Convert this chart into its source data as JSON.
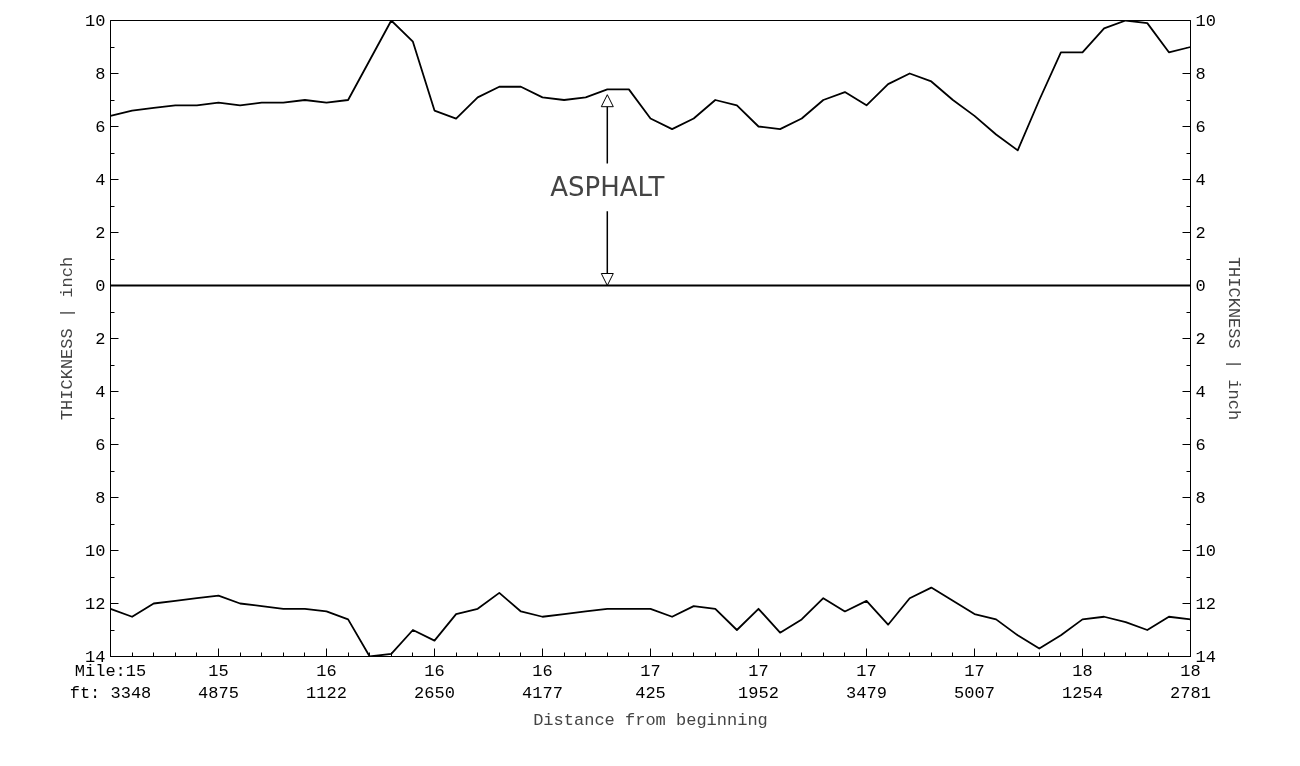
{
  "chart_data": {
    "type": "line",
    "xlabel": "Distance from beginning",
    "ylabel": "THICKNESS | inch",
    "y2label": "THICKNESS | inch",
    "categories": [
      "Mile:15\nft: 3348",
      null,
      null,
      null,
      null,
      "15\n4875",
      null,
      null,
      null,
      null,
      "16\n1122",
      null,
      null,
      null,
      null,
      "16\n2650",
      null,
      null,
      null,
      null,
      "16\n4177",
      null,
      null,
      null,
      null,
      "17\n425",
      null,
      null,
      null,
      null,
      "17\n1952",
      null,
      null,
      null,
      null,
      "17\n3479",
      null,
      null,
      null,
      null,
      "17\n5007",
      null,
      null,
      null,
      null,
      "18\n1254",
      null,
      null,
      null,
      null,
      "18\n2781"
    ],
    "series": [
      {
        "color": "#000000",
        "values": [
          6.4,
          6.6,
          6.7,
          6.8,
          6.8,
          6.9,
          6.8,
          6.9,
          6.9,
          7.0,
          6.9,
          7.0,
          8.5,
          10.0,
          9.2,
          6.6,
          6.3,
          7.1,
          7.5,
          7.5,
          7.1,
          7.0,
          7.1,
          7.4,
          7.4,
          6.3,
          5.9,
          6.3,
          7.0,
          6.8,
          6.0,
          5.9,
          6.3,
          7.0,
          7.3,
          6.8,
          7.6,
          8.0,
          7.7,
          7.0,
          6.4,
          5.7,
          5.1,
          7.0,
          8.8,
          8.8,
          9.7,
          10.0,
          9.9,
          8.8,
          9.0
        ]
      },
      {
        "color": "#000000",
        "values": [
          -12.2,
          -12.5,
          -12.0,
          -11.9,
          -11.8,
          -11.7,
          -12.0,
          -12.1,
          -12.2,
          -12.2,
          -12.3,
          -12.6,
          -14,
          -13.9,
          -13.0,
          -13.4,
          -12.4,
          -12.2,
          -11.6,
          -12.3,
          -12.5,
          -12.4,
          -12.3,
          -12.2,
          -12.2,
          -12.2,
          -12.5,
          -12.1,
          -12.2,
          -13.0,
          -12.2,
          -13.1,
          -12.6,
          -11.8,
          -12.3,
          -11.9,
          -12.8,
          -11.8,
          -11.4,
          -11.9,
          -12.4,
          -12.6,
          -13.2,
          -13.7,
          -13.2,
          -12.6,
          -12.5,
          -12.7,
          -13.0,
          -12.5,
          -12.6
        ]
      }
    ],
    "ylim": [
      -14,
      10
    ],
    "yticks": [
      {
        "value": -14,
        "label": "14"
      },
      {
        "value": -12,
        "label": "12"
      },
      {
        "value": -10,
        "label": "10"
      },
      {
        "value": -8,
        "label": "8"
      },
      {
        "value": -6,
        "label": "6"
      },
      {
        "value": -4,
        "label": "4"
      },
      {
        "value": -2,
        "label": "2"
      },
      0,
      2,
      4,
      6,
      8,
      10
    ],
    "y2lim": [
      -14,
      10
    ],
    "y2ticks": [
      {
        "value": -14,
        "label": "14"
      },
      {
        "value": -12,
        "label": "12"
      },
      {
        "value": -10,
        "label": "10"
      },
      {
        "value": -8,
        "label": "8"
      },
      {
        "value": -6,
        "label": "6"
      },
      {
        "value": -4,
        "label": "4"
      },
      {
        "value": -2,
        "label": "2"
      },
      0,
      2,
      4,
      6,
      8,
      10
    ],
    "ref_lines": [
      {
        "axis": "y",
        "value": 0,
        "color": "#000000"
      }
    ],
    "annotations": [
      {
        "text": "ASPHALT",
        "y": 7.4
      }
    ],
    "grid": false,
    "marker": "none",
    "line_style": "solid"
  }
}
